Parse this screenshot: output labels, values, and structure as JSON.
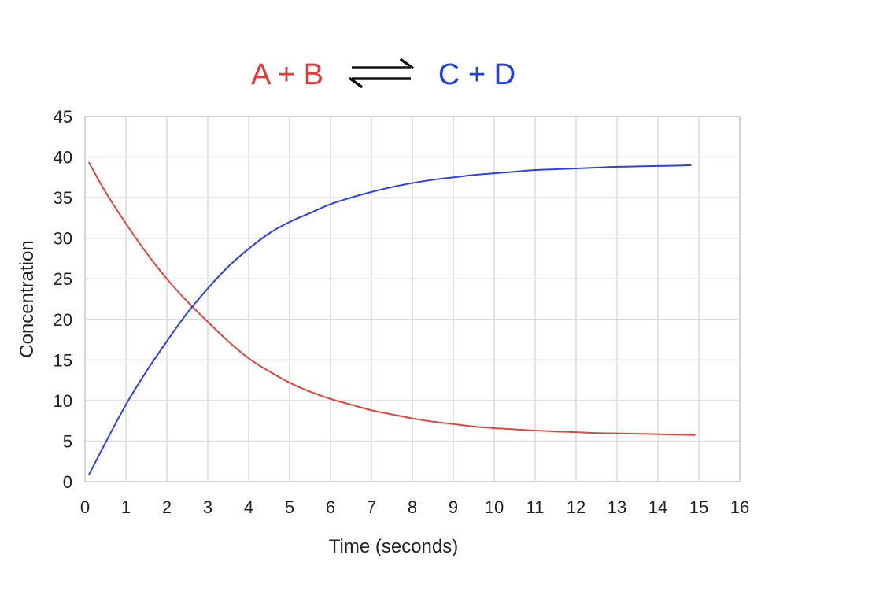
{
  "chart_data": {
    "type": "line",
    "title": {
      "reactants": "A + B",
      "products": "C + D",
      "reactants_color": "#e53935",
      "products_color": "#1e3ff0"
    },
    "xlabel": "Time (seconds)",
    "ylabel": "Concentration",
    "xlim": [
      0,
      16
    ],
    "ylim": [
      0,
      45
    ],
    "x_ticks": [
      "0",
      "1",
      "2",
      "3",
      "4",
      "5",
      "6",
      "7",
      "8",
      "9",
      "10",
      "11",
      "12",
      "13",
      "14",
      "15",
      "16"
    ],
    "y_ticks": [
      "0",
      "5",
      "10",
      "15",
      "20",
      "25",
      "30",
      "35",
      "40",
      "45"
    ],
    "grid": true,
    "legend": "none",
    "series": [
      {
        "color": "#e0453f",
        "x": [
          0.1,
          0.5,
          1,
          1.5,
          2,
          2.5,
          3,
          3.5,
          4,
          4.5,
          5,
          5.5,
          6,
          6.5,
          7,
          7.5,
          8,
          8.5,
          9,
          9.5,
          10,
          10.5,
          11,
          11.5,
          12,
          12.5,
          13,
          13.5,
          14,
          14.5,
          14.9
        ],
        "y": [
          39.3,
          35.7,
          31.8,
          28.2,
          25.0,
          22.2,
          19.7,
          17.3,
          15.2,
          13.6,
          12.2,
          11.1,
          10.2,
          9.5,
          8.8,
          8.3,
          7.8,
          7.4,
          7.1,
          6.8,
          6.6,
          6.45,
          6.3,
          6.2,
          6.1,
          6.0,
          5.95,
          5.9,
          5.85,
          5.8,
          5.75
        ]
      },
      {
        "color": "#2b3ff5",
        "x": [
          0.1,
          0.5,
          1,
          1.5,
          2,
          2.5,
          3,
          3.5,
          4,
          4.5,
          5,
          5.5,
          6,
          6.5,
          7,
          7.5,
          8,
          8.5,
          9,
          9.5,
          10,
          10.5,
          11,
          11.5,
          12,
          12.5,
          13,
          13.5,
          14,
          14.5,
          14.8
        ],
        "y": [
          0.9,
          4.8,
          9.5,
          13.6,
          17.3,
          20.8,
          23.8,
          26.5,
          28.7,
          30.6,
          32.0,
          33.1,
          34.2,
          35.0,
          35.7,
          36.3,
          36.8,
          37.2,
          37.5,
          37.8,
          38.0,
          38.2,
          38.4,
          38.5,
          38.6,
          38.7,
          38.8,
          38.85,
          38.9,
          38.95,
          39.0
        ]
      }
    ]
  }
}
